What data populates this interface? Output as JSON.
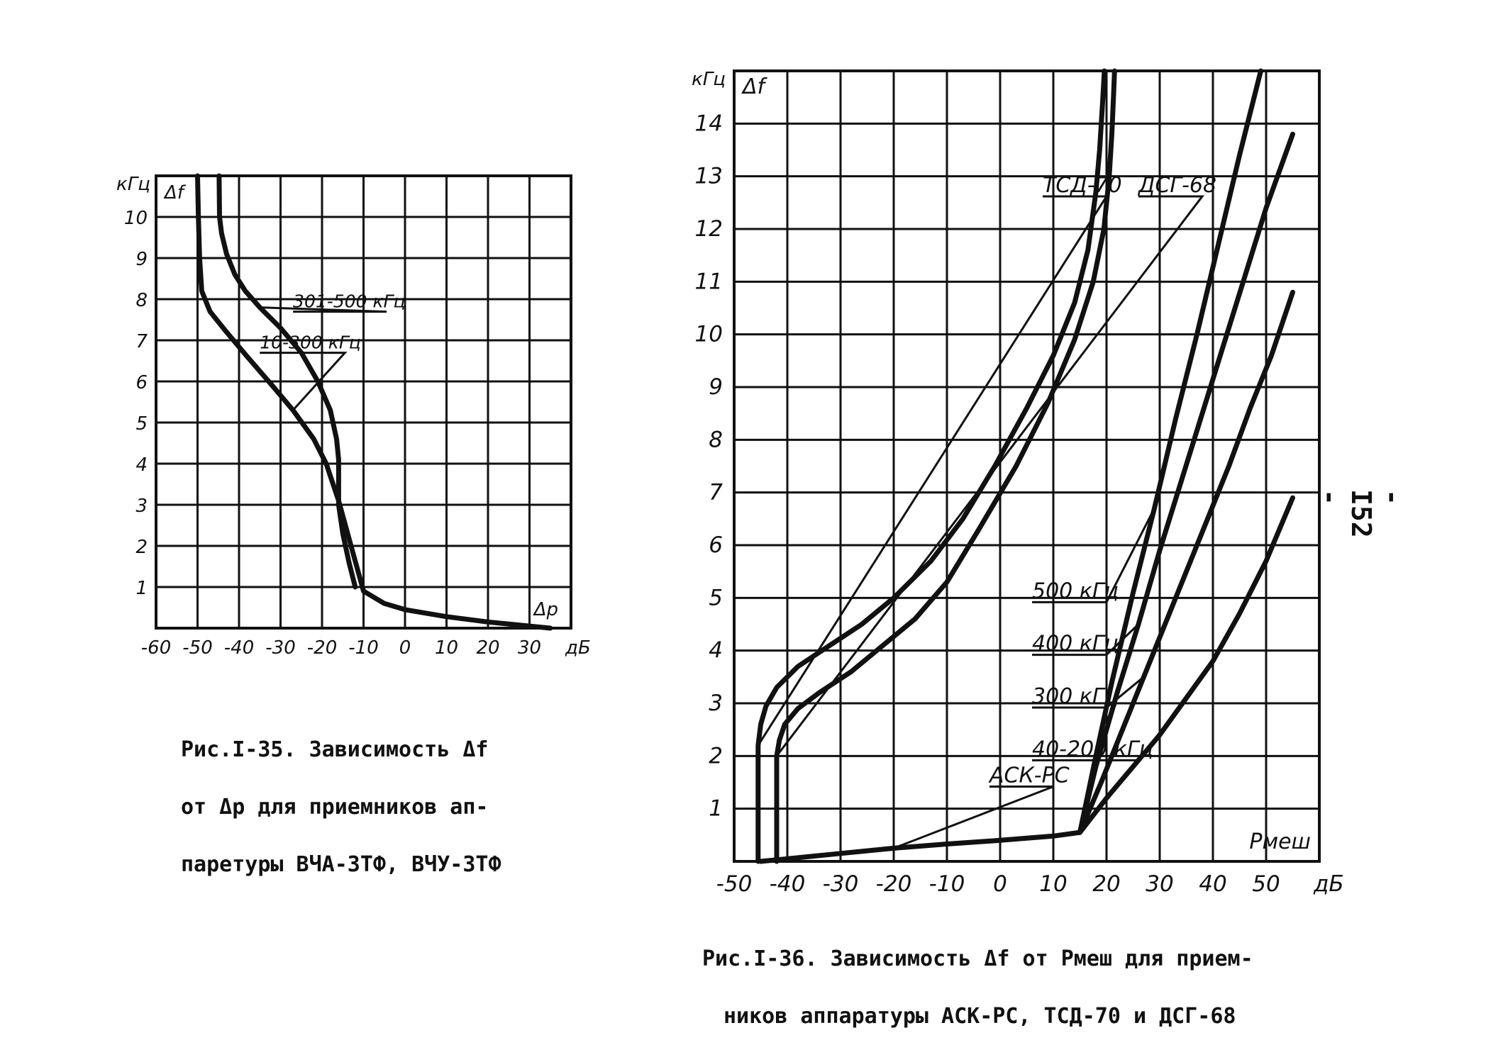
{
  "page_number": "- I52 -",
  "chart_data": [
    {
      "type": "line",
      "caption": [
        "Рис.I-35. Зависимость Δf",
        "от Δp для приемников ап-",
        "паретуры ВЧА-ЗТФ, ВЧУ-ЗТФ"
      ],
      "x_axis_label": "Δp",
      "x_unit": "дБ",
      "y_axis_label": "Δf",
      "y_unit": "кГц",
      "xlim": [
        -60,
        40
      ],
      "ylim": [
        0,
        11
      ],
      "x_ticks": [
        -60,
        -50,
        -40,
        -30,
        -20,
        -10,
        0,
        10,
        20,
        30
      ],
      "x_tick_labels": [
        "-60",
        "-50",
        "-40",
        "-30",
        "-20",
        "-10",
        "0",
        "10",
        "20",
        "30"
      ],
      "y_ticks": [
        1,
        2,
        3,
        4,
        5,
        6,
        7,
        8,
        9,
        10
      ],
      "y_tick_labels": [
        "1",
        "2",
        "3",
        "4",
        "5",
        "6",
        "7",
        "8",
        "9",
        "10"
      ],
      "grid": true,
      "series": [
        {
          "name": "301-500 кГц",
          "label_anchor": [
            -27,
            7.8
          ],
          "x": [
            -44.8,
            -44.7,
            -44.2,
            -43,
            -41,
            -38.5,
            -35,
            -30,
            -25,
            -21,
            -18,
            -16.5,
            -16,
            -16,
            -15,
            -13.5,
            -12
          ],
          "y": [
            11,
            10,
            9.6,
            9.1,
            8.6,
            8.2,
            7.8,
            7.3,
            6.7,
            6.0,
            5.3,
            4.6,
            4.1,
            3.0,
            2.3,
            1.6,
            1.0
          ]
        },
        {
          "name": "10-300 кГц",
          "label_anchor": [
            -35,
            6.8
          ],
          "x": [
            -50,
            -49.8,
            -49.5,
            -49,
            -47,
            -43,
            -38,
            -32,
            -27,
            -22,
            -19,
            -16,
            -13,
            -10,
            -5,
            0,
            10,
            20,
            30,
            35
          ],
          "y": [
            11,
            10,
            9,
            8.2,
            7.7,
            7.2,
            6.6,
            5.9,
            5.3,
            4.6,
            4.0,
            3.1,
            2.0,
            0.9,
            0.6,
            0.45,
            0.28,
            0.15,
            0.05,
            0.0
          ]
        }
      ]
    },
    {
      "type": "line",
      "caption": [
        "Рис.I-36. Зависимость Δf от Pмеш для прием-",
        "ников аппаратуры АСК-РС, ТСД-70 и ДСГ-68"
      ],
      "x_axis_label": "Pмеш",
      "x_unit": "дБ",
      "y_axis_label": "Δf",
      "y_unit": "кГц",
      "xlim": [
        -50,
        60
      ],
      "ylim": [
        0,
        15
      ],
      "x_ticks": [
        -50,
        -40,
        -30,
        -20,
        -10,
        0,
        10,
        20,
        30,
        40,
        50
      ],
      "x_tick_labels": [
        "-50",
        "-40",
        "-30",
        "-20",
        "-10",
        "0",
        "10",
        "20",
        "30",
        "40",
        "50"
      ],
      "y_ticks": [
        1,
        2,
        3,
        4,
        5,
        6,
        7,
        8,
        9,
        10,
        11,
        12,
        13,
        14
      ],
      "y_tick_labels": [
        "1",
        "2",
        "3",
        "4",
        "5",
        "6",
        "7",
        "8",
        "9",
        "10",
        "11",
        "12",
        "13",
        "14"
      ],
      "grid": true,
      "series": [
        {
          "name": "ТСД-70",
          "label_anchor": [
            8,
            12.7
          ],
          "x": [
            -45.5,
            -45.5,
            -45.5,
            -45,
            -44,
            -42,
            -38,
            -32,
            -26,
            -20,
            -13,
            -7,
            -1,
            5,
            10,
            14,
            16.5,
            18,
            18.7,
            19.2,
            19.6
          ],
          "y": [
            0,
            1.5,
            2.2,
            2.6,
            2.95,
            3.3,
            3.7,
            4.1,
            4.5,
            5.0,
            5.7,
            6.5,
            7.5,
            8.6,
            9.6,
            10.6,
            11.6,
            12.7,
            13.5,
            14.3,
            15
          ]
        },
        {
          "name": "ДСГ-68",
          "label_anchor": [
            26,
            12.7
          ],
          "x": [
            -42,
            -42,
            -42,
            -41.5,
            -40.5,
            -38,
            -34,
            -28,
            -22,
            -16,
            -10,
            -4,
            3,
            9,
            14,
            17.5,
            19.5,
            20.5,
            21,
            21.3,
            21.5
          ],
          "y": [
            0,
            1.4,
            2.0,
            2.3,
            2.6,
            2.9,
            3.2,
            3.6,
            4.1,
            4.6,
            5.3,
            6.3,
            7.5,
            8.7,
            9.9,
            11.0,
            12.0,
            13.0,
            13.8,
            14.5,
            15
          ]
        },
        {
          "name": "АСК-РС",
          "label_anchor": [
            -2,
            1.5
          ],
          "x": [
            -45,
            -40,
            -30,
            -20,
            -10,
            0,
            10,
            15
          ],
          "y": [
            0,
            0.05,
            0.15,
            0.25,
            0.33,
            0.4,
            0.48,
            0.55
          ]
        },
        {
          "name": "500 кГц",
          "label_anchor": [
            6,
            5.0
          ],
          "x": [
            15,
            18,
            21,
            25,
            29,
            33,
            37,
            41,
            45,
            49
          ],
          "y": [
            0.55,
            2.0,
            3.4,
            5.1,
            6.7,
            8.4,
            10.0,
            11.7,
            13.4,
            15
          ]
        },
        {
          "name": "400 кГц",
          "label_anchor": [
            6,
            4.0
          ],
          "x": [
            15,
            18,
            22,
            26,
            30,
            34,
            38,
            42,
            46,
            50,
            55
          ],
          "y": [
            0.55,
            1.8,
            3.2,
            4.5,
            5.9,
            7.2,
            8.5,
            9.8,
            11.1,
            12.4,
            13.8
          ]
        },
        {
          "name": "300 кГц",
          "label_anchor": [
            6,
            3.0
          ],
          "x": [
            15,
            19,
            23,
            27,
            31,
            35,
            39,
            43,
            47,
            51,
            55
          ],
          "y": [
            0.55,
            1.5,
            2.5,
            3.5,
            4.5,
            5.5,
            6.5,
            7.5,
            8.6,
            9.6,
            10.8
          ]
        },
        {
          "name": "40-200 кГц",
          "label_anchor": [
            6,
            2.0
          ],
          "x": [
            15,
            20,
            25,
            30,
            35,
            40,
            45,
            50,
            55
          ],
          "y": [
            0.55,
            1.2,
            1.8,
            2.4,
            3.1,
            3.8,
            4.7,
            5.7,
            6.9
          ]
        }
      ]
    }
  ]
}
